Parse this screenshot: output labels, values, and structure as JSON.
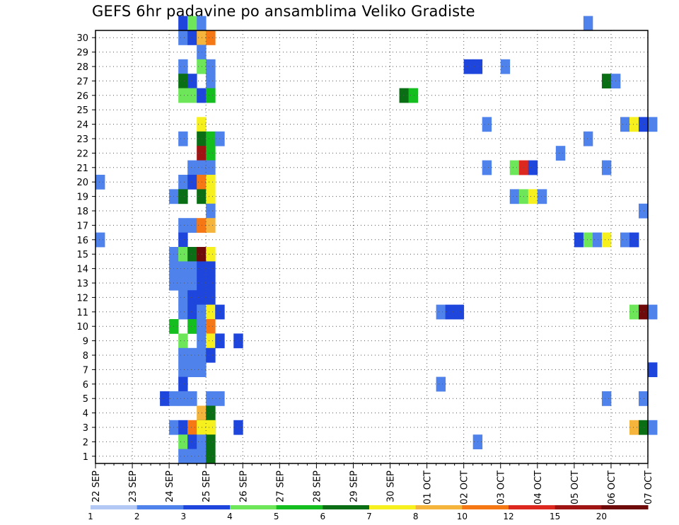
{
  "chart_data": {
    "type": "heatmap",
    "title": "GEFS 6hr padavine po ansamblima Veliko Gradiste",
    "x_ticks": [
      "22 SEP",
      "23 SEP",
      "24 SEP",
      "25 SEP",
      "26 SEP",
      "27 SEP",
      "28 SEP",
      "29 SEP",
      "30 SEP",
      "01 OCT",
      "02 OCT",
      "03 OCT",
      "04 OCT",
      "05 OCT",
      "06 OCT",
      "07 OCT"
    ],
    "y_ticks": [
      "1",
      "2",
      "3",
      "4",
      "5",
      "6",
      "7",
      "8",
      "9",
      "10",
      "11",
      "12",
      "13",
      "14",
      "15",
      "16",
      "17",
      "18",
      "19",
      "20",
      "21",
      "22",
      "23",
      "24",
      "25",
      "26",
      "27",
      "28",
      "29",
      "30"
    ],
    "x_range_steps": [
      0,
      60
    ],
    "y_range_members": [
      0,
      30
    ],
    "grid": true,
    "legend": {
      "placement": "bottom",
      "labels": [
        "1",
        "2",
        "3",
        "4",
        "5",
        "6",
        "7",
        "8",
        "10",
        "12",
        "15",
        "20"
      ],
      "colors": [
        "#b4c8f5",
        "#5082eb",
        "#1e46dc",
        "#6ee65a",
        "#14be1e",
        "#0a6e14",
        "#f5f01e",
        "#f5b43c",
        "#f57814",
        "#dc281e",
        "#a01414",
        "#6e0a0a"
      ]
    },
    "cells": [
      [
        9,
        30,
        2
      ],
      [
        10,
        30,
        3
      ],
      [
        11,
        30,
        1
      ],
      [
        9,
        29,
        1
      ],
      [
        10,
        29,
        2
      ],
      [
        11,
        29,
        7
      ],
      [
        12,
        29,
        8
      ],
      [
        11,
        28,
        1
      ],
      [
        9,
        27,
        1
      ],
      [
        11,
        27,
        3
      ],
      [
        12,
        27,
        1
      ],
      [
        9,
        26,
        5
      ],
      [
        10,
        26,
        2
      ],
      [
        12,
        26,
        1
      ],
      [
        9,
        25,
        3
      ],
      [
        10,
        25,
        3
      ],
      [
        11,
        25,
        2
      ],
      [
        12,
        25,
        4
      ],
      [
        11,
        23,
        6
      ],
      [
        9,
        22,
        1
      ],
      [
        11,
        22,
        5
      ],
      [
        12,
        22,
        4
      ],
      [
        13,
        22,
        1
      ],
      [
        11,
        21,
        10
      ],
      [
        12,
        21,
        4
      ],
      [
        10,
        20,
        1
      ],
      [
        11,
        20,
        1
      ],
      [
        12,
        20,
        1
      ],
      [
        0,
        19,
        1
      ],
      [
        9,
        19,
        1
      ],
      [
        10,
        19,
        2
      ],
      [
        11,
        19,
        8
      ],
      [
        12,
        19,
        6
      ],
      [
        8,
        18,
        1
      ],
      [
        9,
        18,
        5
      ],
      [
        11,
        18,
        5
      ],
      [
        12,
        18,
        6
      ],
      [
        12,
        17,
        1
      ],
      [
        9,
        16,
        1
      ],
      [
        10,
        16,
        1
      ],
      [
        11,
        16,
        8
      ],
      [
        12,
        16,
        7
      ],
      [
        0,
        15,
        1
      ],
      [
        9,
        15,
        2
      ],
      [
        8,
        14,
        1
      ],
      [
        9,
        14,
        3
      ],
      [
        10,
        14,
        5
      ],
      [
        11,
        14,
        11
      ],
      [
        12,
        14,
        6
      ],
      [
        8,
        13,
        1
      ],
      [
        9,
        13,
        1
      ],
      [
        10,
        13,
        1
      ],
      [
        11,
        13,
        2
      ],
      [
        12,
        13,
        2
      ],
      [
        8,
        12,
        1
      ],
      [
        9,
        12,
        1
      ],
      [
        10,
        12,
        1
      ],
      [
        11,
        12,
        2
      ],
      [
        12,
        12,
        2
      ],
      [
        9,
        11,
        1
      ],
      [
        10,
        11,
        2
      ],
      [
        11,
        11,
        2
      ],
      [
        12,
        11,
        2
      ],
      [
        9,
        10,
        1
      ],
      [
        10,
        10,
        2
      ],
      [
        11,
        10,
        1
      ],
      [
        12,
        10,
        6
      ],
      [
        13,
        10,
        2
      ],
      [
        8,
        9,
        4
      ],
      [
        10,
        9,
        4
      ],
      [
        11,
        9,
        1
      ],
      [
        12,
        9,
        8
      ],
      [
        9,
        8,
        3
      ],
      [
        11,
        8,
        1
      ],
      [
        12,
        8,
        6
      ],
      [
        13,
        8,
        2
      ],
      [
        15,
        8,
        2
      ],
      [
        9,
        7,
        1
      ],
      [
        10,
        7,
        1
      ],
      [
        11,
        7,
        1
      ],
      [
        12,
        7,
        2
      ],
      [
        9,
        6,
        1
      ],
      [
        10,
        6,
        1
      ],
      [
        11,
        6,
        1
      ],
      [
        9,
        5,
        2
      ],
      [
        7,
        4,
        2
      ],
      [
        8,
        4,
        1
      ],
      [
        9,
        4,
        1
      ],
      [
        10,
        4,
        1
      ],
      [
        12,
        4,
        1
      ],
      [
        13,
        4,
        1
      ],
      [
        11,
        3,
        7
      ],
      [
        12,
        3,
        5
      ],
      [
        11,
        2,
        5
      ],
      [
        12,
        2,
        5
      ],
      [
        8,
        2,
        1
      ],
      [
        9,
        2,
        2
      ],
      [
        10,
        2,
        8
      ],
      [
        11,
        2,
        6
      ],
      [
        12,
        2,
        6
      ],
      [
        15,
        2,
        2
      ],
      [
        9,
        1,
        3
      ],
      [
        10,
        1,
        2
      ],
      [
        11,
        1,
        1
      ],
      [
        12,
        1,
        5
      ],
      [
        9,
        0,
        1
      ],
      [
        10,
        0,
        1
      ],
      [
        11,
        0,
        1
      ],
      [
        12,
        0,
        5
      ],
      [
        33,
        25,
        5
      ],
      [
        34,
        25,
        4
      ],
      [
        37,
        10,
        1
      ],
      [
        37,
        5,
        1
      ],
      [
        38,
        10,
        2
      ],
      [
        39,
        10,
        2
      ],
      [
        40,
        27,
        2
      ],
      [
        41,
        27,
        2
      ],
      [
        41,
        1,
        1
      ],
      [
        42,
        23,
        1
      ],
      [
        42,
        20,
        1
      ],
      [
        44,
        27,
        1
      ],
      [
        45,
        20,
        3
      ],
      [
        45,
        18,
        1
      ],
      [
        46,
        20,
        9
      ],
      [
        46,
        18,
        3
      ],
      [
        47,
        20,
        2
      ],
      [
        47,
        18,
        6
      ],
      [
        48,
        18,
        1
      ],
      [
        50,
        21,
        1
      ],
      [
        52,
        15,
        2
      ],
      [
        53,
        30,
        1
      ],
      [
        53,
        22,
        1
      ],
      [
        53,
        15,
        3
      ],
      [
        54,
        15,
        1
      ],
      [
        55,
        26,
        5
      ],
      [
        55,
        20,
        1
      ],
      [
        55,
        15,
        6
      ],
      [
        55,
        4,
        1
      ],
      [
        56,
        26,
        1
      ],
      [
        57,
        23,
        1
      ],
      [
        57,
        15,
        1
      ],
      [
        58,
        23,
        6
      ],
      [
        58,
        15,
        2
      ],
      [
        58,
        10,
        3
      ],
      [
        58,
        2,
        7
      ],
      [
        59,
        23,
        2
      ],
      [
        59,
        17,
        1
      ],
      [
        59,
        10,
        11
      ],
      [
        59,
        4,
        1
      ],
      [
        59,
        2,
        5
      ],
      [
        60,
        23,
        1
      ],
      [
        60,
        10,
        1
      ],
      [
        60,
        6,
        2
      ],
      [
        60,
        2,
        1
      ]
    ]
  }
}
